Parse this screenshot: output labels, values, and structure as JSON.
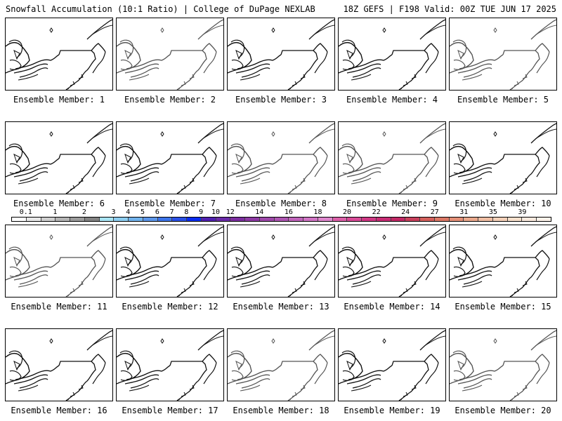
{
  "header": {
    "title": "Snowfall Accumulation (10:1 Ratio) | College of DuPage NEXLAB",
    "valid": "18Z GEFS | F198 Valid: 00Z TUE JUN 17 2025"
  },
  "members": [
    {
      "label": "Ensemble Member: 1",
      "shade": "#111111"
    },
    {
      "label": "Ensemble Member: 2",
      "shade": "#555555"
    },
    {
      "label": "Ensemble Member: 3",
      "shade": "#111111"
    },
    {
      "label": "Ensemble Member: 4",
      "shade": "#111111"
    },
    {
      "label": "Ensemble Member: 5",
      "shade": "#555555"
    },
    {
      "label": "Ensemble Member: 6",
      "shade": "#111111"
    },
    {
      "label": "Ensemble Member: 7",
      "shade": "#111111"
    },
    {
      "label": "Ensemble Member: 8",
      "shade": "#555555"
    },
    {
      "label": "Ensemble Member: 9",
      "shade": "#555555"
    },
    {
      "label": "Ensemble Member: 10",
      "shade": "#111111"
    },
    {
      "label": "Ensemble Member: 11",
      "shade": "#555555"
    },
    {
      "label": "Ensemble Member: 12",
      "shade": "#111111"
    },
    {
      "label": "Ensemble Member: 13",
      "shade": "#111111"
    },
    {
      "label": "Ensemble Member: 14",
      "shade": "#111111"
    },
    {
      "label": "Ensemble Member: 15",
      "shade": "#111111"
    },
    {
      "label": "Ensemble Member: 16",
      "shade": "#111111"
    },
    {
      "label": "Ensemble Member: 17",
      "shade": "#111111"
    },
    {
      "label": "Ensemble Member: 18",
      "shade": "#555555"
    },
    {
      "label": "Ensemble Member: 19",
      "shade": "#111111"
    },
    {
      "label": "Ensemble Member: 20",
      "shade": "#555555"
    }
  ],
  "colorbar": {
    "ticks": [
      "0.1",
      "1",
      "2",
      "3",
      "4",
      "5",
      "6",
      "7",
      "8",
      "9",
      "10",
      "12",
      "14",
      "16",
      "18",
      "20",
      "22",
      "24",
      "27",
      "31",
      "35",
      "39"
    ],
    "colors": [
      "#ffffff",
      "#e8e8e8",
      "#cfcfcf",
      "#b5b5b5",
      "#9c9c9c",
      "#838383",
      "#a8e4f4",
      "#8ccdf0",
      "#70b2ec",
      "#5c96ea",
      "#3d74ea",
      "#2a50e6",
      "#0a2cf0",
      "#5020b0",
      "#6a2aa8",
      "#7c2ea0",
      "#8e3aa4",
      "#9e48aa",
      "#ae56b2",
      "#c064ba",
      "#d074c4",
      "#de86cc",
      "#dc60a8",
      "#d84a96",
      "#d03884",
      "#c82c74",
      "#c22866",
      "#c8405c",
      "#d4605c",
      "#dc7866",
      "#e49078",
      "#eaa88c",
      "#f0bea4",
      "#f4d0b8",
      "#f8e0cc",
      "#faeade",
      "#fcf2ea"
    ]
  }
}
